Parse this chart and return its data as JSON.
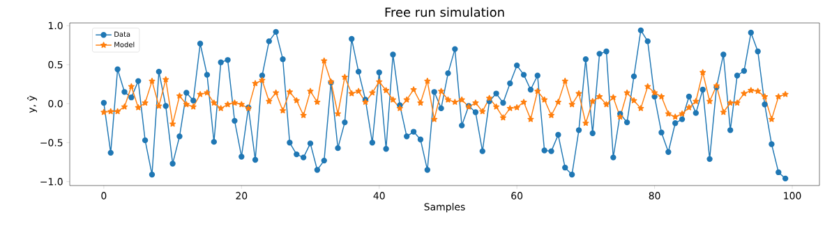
{
  "chart_data": {
    "type": "line",
    "title": "Free run simulation",
    "xlabel": "Samples",
    "ylabel": "y, ŷ",
    "x": [
      0,
      1,
      2,
      3,
      4,
      5,
      6,
      7,
      8,
      9,
      10,
      11,
      12,
      13,
      14,
      15,
      16,
      17,
      18,
      19,
      20,
      21,
      22,
      23,
      24,
      25,
      26,
      27,
      28,
      29,
      30,
      31,
      32,
      33,
      34,
      35,
      36,
      37,
      38,
      39,
      40,
      41,
      42,
      43,
      44,
      45,
      46,
      47,
      48,
      49,
      50,
      51,
      52,
      53,
      54,
      55,
      56,
      57,
      58,
      59,
      60,
      61,
      62,
      63,
      64,
      65,
      66,
      67,
      68,
      69,
      70,
      71,
      72,
      73,
      74,
      75,
      76,
      77,
      78,
      79,
      80,
      81,
      82,
      83,
      84,
      85,
      86,
      87,
      88,
      89,
      90,
      91,
      92,
      93,
      94,
      95,
      96,
      97,
      98,
      99
    ],
    "series": [
      {
        "name": "Data",
        "color": "#1f77b4",
        "marker": "circle",
        "values": [
          0.01,
          -0.63,
          0.44,
          0.15,
          0.08,
          0.29,
          -0.47,
          -0.91,
          0.41,
          -0.03,
          -0.77,
          -0.42,
          0.14,
          0.04,
          0.77,
          0.37,
          -0.49,
          0.53,
          0.56,
          -0.22,
          -0.68,
          -0.05,
          -0.72,
          0.36,
          0.8,
          0.92,
          0.57,
          -0.5,
          -0.65,
          -0.69,
          -0.51,
          -0.85,
          -0.73,
          0.27,
          -0.57,
          -0.24,
          0.83,
          0.41,
          0.05,
          -0.5,
          0.4,
          -0.58,
          0.63,
          -0.02,
          -0.42,
          -0.36,
          -0.46,
          -0.85,
          0.15,
          -0.06,
          0.39,
          0.7,
          -0.28,
          -0.03,
          -0.11,
          -0.61,
          0.03,
          0.13,
          0.01,
          0.26,
          0.49,
          0.37,
          0.18,
          0.36,
          -0.6,
          -0.61,
          -0.4,
          -0.82,
          -0.91,
          -0.34,
          0.57,
          -0.38,
          0.64,
          0.67,
          -0.69,
          -0.13,
          -0.24,
          0.35,
          0.94,
          0.8,
          0.09,
          -0.37,
          -0.62,
          -0.25,
          -0.2,
          0.09,
          -0.12,
          0.18,
          -0.71,
          0.21,
          0.63,
          -0.34,
          0.36,
          0.42,
          0.91,
          0.67,
          -0.01,
          -0.52,
          -0.88,
          -0.96
        ]
      },
      {
        "name": "Model",
        "color": "#ff7f0e",
        "marker": "star",
        "values": [
          -0.11,
          -0.1,
          -0.1,
          -0.04,
          0.22,
          -0.05,
          0.01,
          0.29,
          -0.03,
          0.31,
          -0.26,
          0.1,
          -0.01,
          -0.04,
          0.12,
          0.14,
          0.01,
          -0.06,
          -0.01,
          0.01,
          -0.01,
          -0.06,
          0.26,
          0.3,
          0.03,
          0.14,
          -0.09,
          0.15,
          0.04,
          -0.15,
          0.16,
          0.02,
          0.55,
          0.28,
          -0.13,
          0.34,
          0.13,
          0.16,
          0.02,
          0.14,
          0.28,
          0.17,
          0.05,
          -0.06,
          0.05,
          0.18,
          0.01,
          0.29,
          -0.2,
          0.16,
          0.05,
          0.02,
          0.05,
          -0.04,
          0.01,
          -0.1,
          0.07,
          -0.04,
          -0.18,
          -0.06,
          -0.05,
          0.02,
          -0.2,
          0.16,
          0.05,
          -0.15,
          0.02,
          0.29,
          -0.01,
          0.13,
          -0.25,
          0.03,
          0.09,
          -0.01,
          0.08,
          -0.17,
          0.14,
          0.04,
          -0.06,
          0.22,
          0.14,
          0.09,
          -0.13,
          -0.17,
          -0.13,
          -0.05,
          0.03,
          0.4,
          0.03,
          0.23,
          -0.11,
          0.01,
          0.01,
          0.13,
          0.17,
          0.16,
          0.09,
          -0.2,
          0.09,
          0.12
        ]
      }
    ],
    "xlim": [
      -4.95,
      103.95
    ],
    "ylim": [
      -1.05,
      1.035
    ],
    "xticks": [
      0,
      20,
      40,
      60,
      80,
      100
    ],
    "yticks": [
      {
        "value": -1.0,
        "label": "−1.0"
      },
      {
        "value": -0.5,
        "label": "−0.5"
      },
      {
        "value": 0.0,
        "label": "0.0"
      },
      {
        "value": 0.5,
        "label": "0.5"
      },
      {
        "value": 1.0,
        "label": "1.0"
      }
    ],
    "legend": "top left",
    "grid": false,
    "line_style": "solid"
  }
}
